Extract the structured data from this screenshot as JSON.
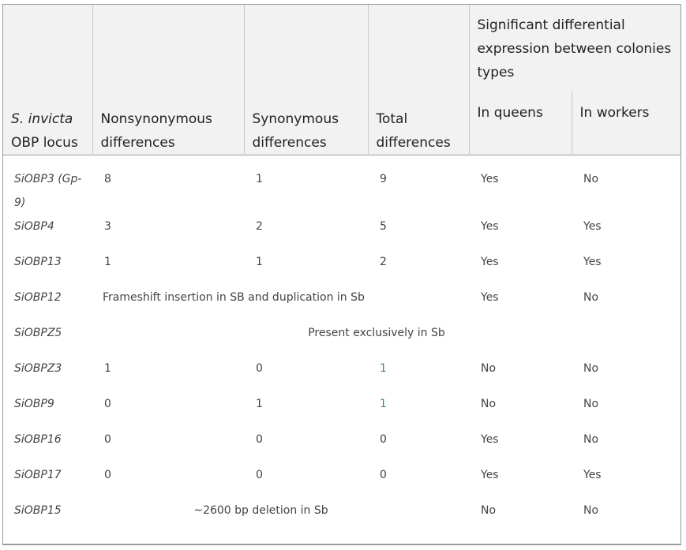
{
  "header": {
    "locus": {
      "line1": "S. invicta",
      "line2": "OBP locus"
    },
    "nonsyn": {
      "line1": "Nonsynonymous",
      "line2": "differences"
    },
    "syn": {
      "line1": "Synonymous",
      "line2": "differences"
    },
    "total": {
      "line1": "Total",
      "line2": "differences"
    },
    "expression_group": "Significant differential expression between colonies types",
    "queens": "In queens",
    "workers": "In workers"
  },
  "rows": [
    {
      "locus": "SiOBP3",
      "locus_suffix": " (Gp-9)",
      "nonsyn": "8",
      "syn": "1",
      "total": "9",
      "queens": "Yes",
      "workers": "No"
    },
    {
      "locus": "SiOBP4",
      "nonsyn": "3",
      "syn": "2",
      "total": "5",
      "queens": "Yes",
      "workers": "Yes"
    },
    {
      "locus": "SiOBP13",
      "nonsyn": "1",
      "syn": "1",
      "total": "2",
      "queens": "Yes",
      "workers": "Yes"
    },
    {
      "locus": "SiOBP12",
      "span_text": "Frameshift insertion in SB and duplication in Sb",
      "queens": "Yes",
      "workers": "No"
    },
    {
      "locus": "SiOBPZ5",
      "span_text": "Present exclusively in Sb"
    },
    {
      "locus": "SiOBPZ3",
      "nonsyn": "1",
      "syn": "0",
      "total": "1",
      "queens": "No",
      "workers": "No"
    },
    {
      "locus": "SiOBP9",
      "nonsyn": "0",
      "syn": "1",
      "total": "1",
      "queens": "No",
      "workers": "No"
    },
    {
      "locus": "SiOBP16",
      "nonsyn": "0",
      "syn": "0",
      "total": "0",
      "queens": "Yes",
      "workers": "No"
    },
    {
      "locus": "SiOBP17",
      "nonsyn": "0",
      "syn": "0",
      "total": "0",
      "queens": "Yes",
      "workers": "Yes"
    },
    {
      "locus": "SiOBP15",
      "span_text": "~2600 bp deletion in Sb",
      "queens": "No",
      "workers": "No"
    }
  ]
}
